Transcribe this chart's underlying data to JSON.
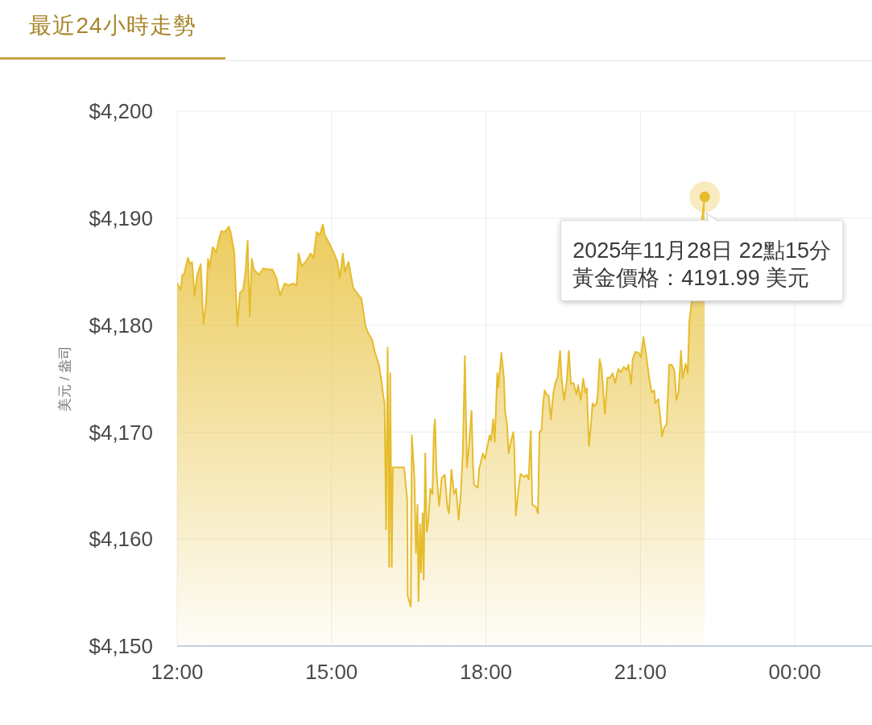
{
  "chart_data": {
    "type": "area",
    "title": "最近24小時走勢",
    "ylabel": "美元 / 盎司",
    "color": "#e6bc2c",
    "x": [
      12,
      12.07,
      12.1,
      12.13,
      12.21,
      12.25,
      12.29,
      12.34,
      12.39,
      12.46,
      12.51,
      12.56,
      12.6,
      12.63,
      12.69,
      12.76,
      12.81,
      12.86,
      12.91,
      12.96,
      13,
      13.04,
      13.11,
      13.17,
      13.22,
      13.28,
      13.33,
      13.37,
      13.41,
      13.45,
      13.49,
      13.59,
      13.67,
      13.78,
      13.85,
      13.93,
      14,
      14.09,
      14.17,
      14.25,
      14.32,
      14.36,
      14.42,
      14.51,
      14.59,
      14.65,
      14.71,
      14.77,
      14.83,
      14.87,
      14.95,
      15.03,
      15.11,
      15.16,
      15.22,
      15.26,
      15.33,
      15.42,
      15.51,
      15.58,
      15.66,
      15.71,
      15.79,
      15.84,
      15.92,
      15.97,
      16.01,
      16.03,
      16.06,
      16.09,
      16.12,
      16.14,
      16.17,
      16.19,
      16.41,
      16.47,
      16.48,
      16.54,
      16.56,
      16.61,
      16.64,
      16.67,
      16.69,
      16.72,
      16.74,
      16.77,
      16.79,
      16.82,
      16.85,
      16.88,
      16.92,
      16.96,
      16.99,
      17.01,
      17.04,
      17.09,
      17.14,
      17.2,
      17.25,
      17.28,
      17.33,
      17.38,
      17.42,
      17.47,
      17.51,
      17.55,
      17.59,
      17.63,
      17.67,
      17.72,
      17.75,
      17.77,
      17.84,
      17.87,
      17.94,
      17.98,
      18.03,
      18.07,
      18.1,
      18.14,
      18.17,
      18.22,
      18.24,
      18.3,
      18.35,
      18.37,
      18.41,
      18.44,
      18.47,
      18.53,
      18.55,
      18.58,
      18.63,
      18.67,
      18.74,
      18.79,
      18.83,
      18.87,
      18.9,
      18.97,
      19.01,
      19.04,
      19.08,
      19.11,
      19.14,
      19.18,
      19.22,
      19.26,
      19.31,
      19.35,
      19.39,
      19.44,
      19.47,
      19.52,
      19.57,
      19.61,
      19.65,
      19.7,
      19.76,
      19.79,
      19.84,
      19.89,
      19.93,
      19.96,
      20,
      20.04,
      20.07,
      20.1,
      20.15,
      20.17,
      20.21,
      20.25,
      20.31,
      20.36,
      20.41,
      20.46,
      20.51,
      20.57,
      20.62,
      20.68,
      20.73,
      20.77,
      20.82,
      20.85,
      20.9,
      20.97,
      21.01,
      21.06,
      21.11,
      21.17,
      21.22,
      21.27,
      21.29,
      21.35,
      21.39,
      21.42,
      21.46,
      21.51,
      21.56,
      21.61,
      21.66,
      21.7,
      21.74,
      21.79,
      21.82,
      21.88,
      21.92,
      21.95,
      22.25
    ],
    "values": [
      4183.9,
      4183.3,
      4184.7,
      4184.7,
      4186.3,
      4185.7,
      4185.9,
      4182.7,
      4184.7,
      4185.7,
      4180.1,
      4182.0,
      4186.2,
      4185.4,
      4187.3,
      4186.8,
      4188.0,
      4188.8,
      4188.7,
      4188.9,
      4189.2,
      4188.7,
      4186.8,
      4179.9,
      4183.0,
      4183.3,
      4185.0,
      4187.9,
      4180.8,
      4186.2,
      4185.2,
      4184.7,
      4185.3,
      4185.2,
      4185.2,
      4184.4,
      4182.8,
      4183.9,
      4183.7,
      4183.9,
      4183.7,
      4186.7,
      4185.5,
      4186.0,
      4186.7,
      4186.3,
      4188.7,
      4188.4,
      4189.4,
      4188.4,
      4187.7,
      4186.9,
      4186.0,
      4184.4,
      4186.7,
      4185.0,
      4185.9,
      4183.5,
      4182.9,
      4182.5,
      4179.9,
      4179.3,
      4178.6,
      4177.5,
      4176.3,
      4174.8,
      4173.2,
      4172.7,
      4160.9,
      4177.9,
      4157.4,
      4175.5,
      4157.4,
      4166.7,
      4166.7,
      4163.7,
      4154.7,
      4153.7,
      4169.7,
      4165.7,
      4158.7,
      4163.2,
      4154.2,
      4161.4,
      4156.9,
      4162.4,
      4156.2,
      4168.0,
      4160.7,
      4161.7,
      4164.7,
      4164.2,
      4170.2,
      4171.2,
      4166.2,
      4163.1,
      4165.7,
      4166.0,
      4163.0,
      4162.4,
      4166.5,
      4164.2,
      4164.7,
      4161.8,
      4164.2,
      4168.0,
      4177.1,
      4166.7,
      4168.7,
      4172.0,
      4166.7,
      4165.1,
      4164.8,
      4166.6,
      4168.0,
      4167.5,
      4168.7,
      4169.7,
      4169.2,
      4171.2,
      4169.1,
      4175.5,
      4174.2,
      4177.4,
      4175.0,
      4172.0,
      4170.7,
      4168.0,
      4168.8,
      4170.0,
      4168.7,
      4162.2,
      4164.5,
      4166.1,
      4165.8,
      4166.0,
      4165.6,
      4170.1,
      4163.2,
      4163.0,
      4162.4,
      4170.0,
      4170.2,
      4172.7,
      4173.9,
      4173.5,
      4173.4,
      4171.2,
      4173.7,
      4174.6,
      4175.1,
      4177.6,
      4175.0,
      4173.0,
      4174.8,
      4177.6,
      4174.5,
      4174.6,
      4173.5,
      4174.4,
      4173.0,
      4175.0,
      4173.7,
      4174.1,
      4168.7,
      4170.7,
      4172.7,
      4172.4,
      4172.7,
      4173.5,
      4176.8,
      4175.8,
      4171.7,
      4175.1,
      4175.1,
      4175.5,
      4174.6,
      4175.9,
      4175.6,
      4176.1,
      4175.8,
      4176.3,
      4174.5,
      4176.8,
      4177.5,
      4177.4,
      4177.0,
      4178.9,
      4177.3,
      4175.1,
      4173.7,
      4173.9,
      4172.7,
      4173.1,
      4171.2,
      4169.6,
      4170.4,
      4170.7,
      4176.3,
      4176.3,
      4175.8,
      4173.0,
      4173.7,
      4177.6,
      4175.0,
      4176.4,
      4175.5,
      4180.3,
      4191.99
    ],
    "xlim": [
      12,
      25.5
    ],
    "xticks": [
      {
        "value": 12,
        "label": "12:00"
      },
      {
        "value": 15,
        "label": "15:00"
      },
      {
        "value": 18,
        "label": "18:00"
      },
      {
        "value": 21,
        "label": "21:00"
      },
      {
        "value": 24,
        "label": "00:00"
      }
    ],
    "ylim": [
      4150,
      4200
    ],
    "yticks": [
      {
        "value": 4150,
        "label": "$4,150"
      },
      {
        "value": 4160,
        "label": "$4,160"
      },
      {
        "value": 4170,
        "label": "$4,170"
      },
      {
        "value": 4180,
        "label": "$4,180"
      },
      {
        "value": 4190,
        "label": "$4,190"
      },
      {
        "value": 4200,
        "label": "$4,200"
      }
    ],
    "grid": true,
    "annotations": [
      {
        "text": "2025年11月28日 22點15分黃金價格：4191.99 美元",
        "x": 22.25,
        "y": 4191.99
      }
    ]
  }
}
